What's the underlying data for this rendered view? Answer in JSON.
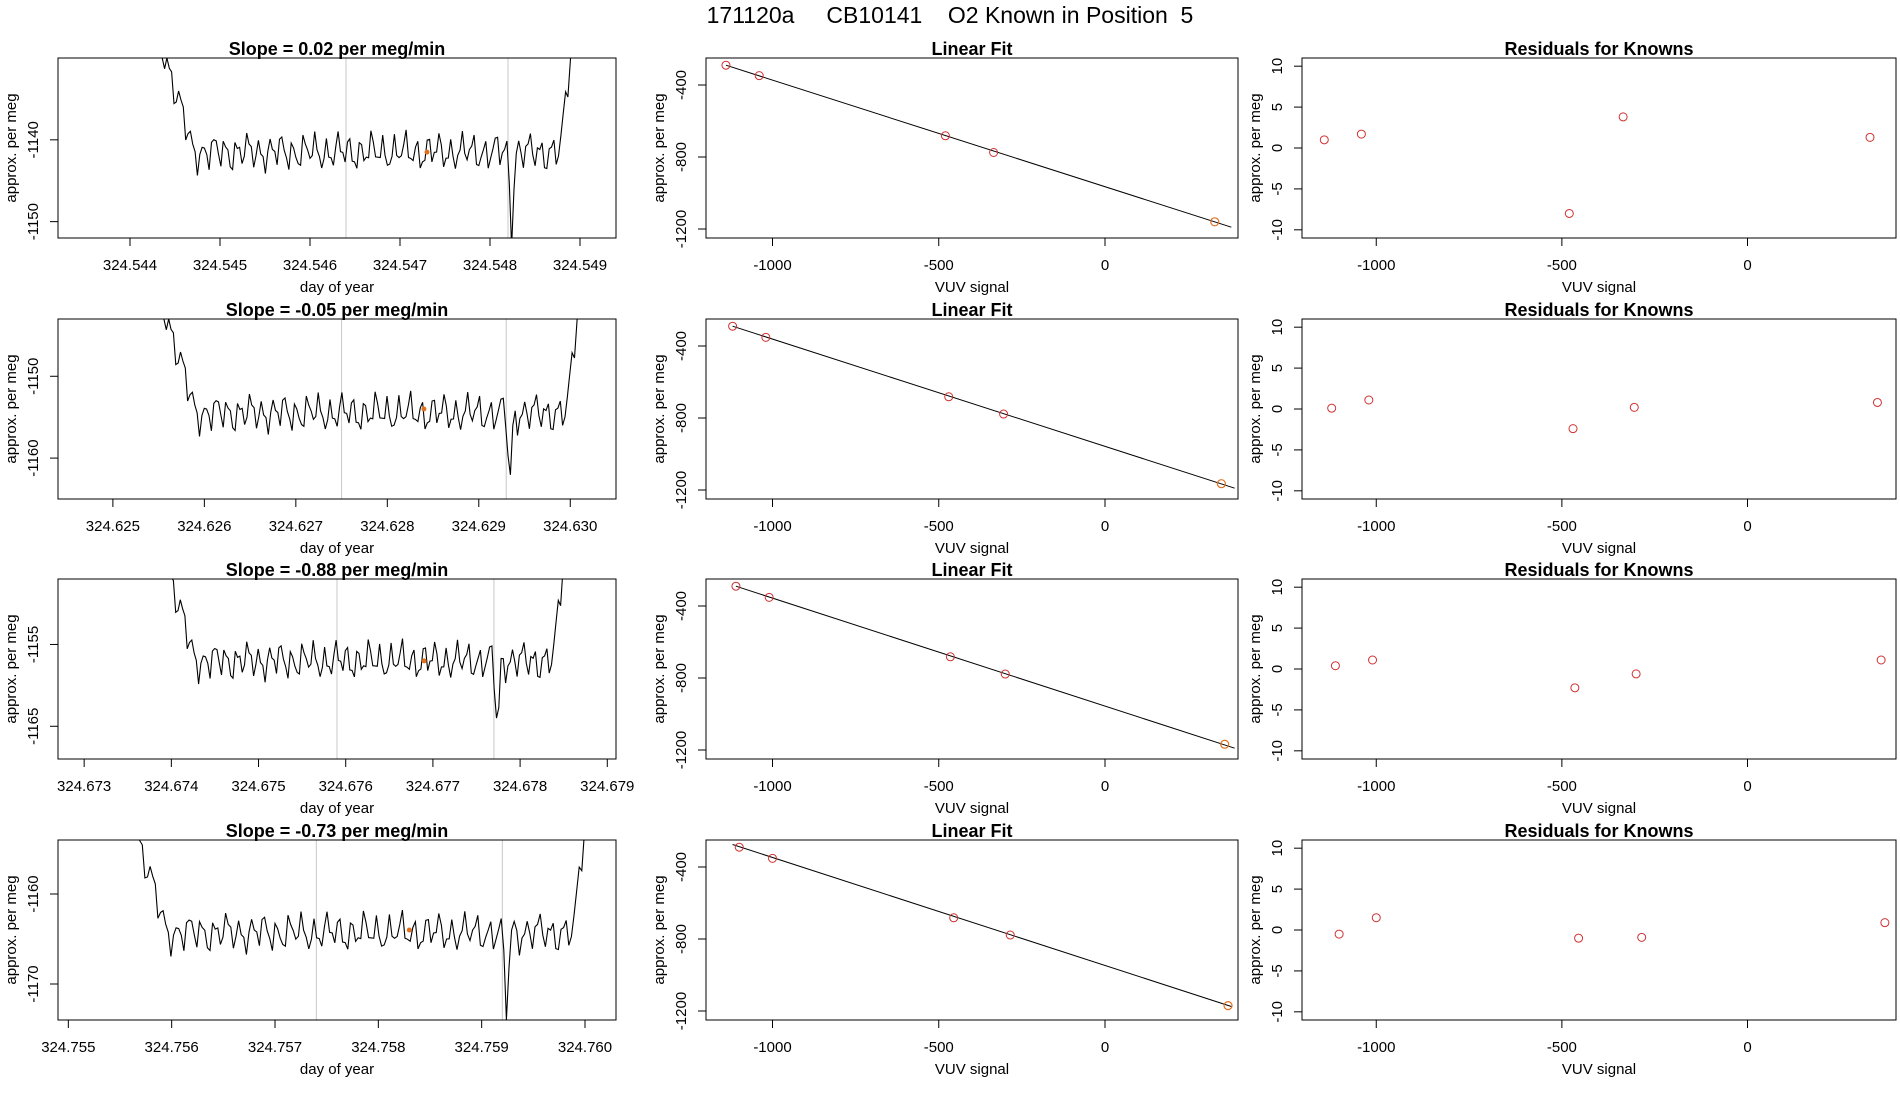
{
  "page_title": "171120a     CB10141    O2 Known in Position  5",
  "colors": {
    "trace": "#000000",
    "marker": "#e07020",
    "points": "#d03030",
    "fit_line": "#000000",
    "boundary": "#c8c8c8",
    "axis": "#000000"
  },
  "chart_data": [
    {
      "type": "line",
      "row": 0,
      "panel": "timeseries",
      "title": "Slope =  0.02  per meg/min",
      "xlabel": "day of year",
      "ylabel": "approx. per meg",
      "xlim": [
        324.5432,
        324.5494
      ],
      "ylim": [
        -1152,
        -1130
      ],
      "xticks": [
        "324.544",
        "324.545",
        "324.546",
        "324.547",
        "324.548",
        "324.549"
      ],
      "yticks": [
        "-1140",
        "-1150"
      ],
      "trace_start": 324.54428,
      "trace_end": 324.54897,
      "trace_base": -1141.5,
      "trace_amp": 2.8,
      "vlines": [
        324.5464,
        324.5482
      ],
      "marker": {
        "x": 324.5473,
        "y": -1141.5
      }
    },
    {
      "type": "scatter",
      "row": 0,
      "panel": "linear_fit",
      "title": "Linear Fit",
      "xlabel": "VUV signal",
      "ylabel": "approx. per meg",
      "xlim": [
        -1200,
        400
      ],
      "ylim": [
        -1250,
        -250
      ],
      "xticks": [
        "-1000",
        "-500",
        "0"
      ],
      "yticks": [
        "-400",
        "-800",
        "-1200"
      ],
      "points": [
        [
          -1140,
          -290
        ],
        [
          -1040,
          -348
        ],
        [
          -480,
          -682
        ],
        [
          -335,
          -775
        ]
      ],
      "known_point": [
        330,
        -1160
      ],
      "fit_line": [
        [
          -1140,
          -290
        ],
        [
          380,
          -1190
        ]
      ]
    },
    {
      "type": "scatter",
      "row": 0,
      "panel": "residuals",
      "title": "Residuals for Knowns",
      "xlabel": "VUV signal",
      "ylabel": "approx. per meg",
      "xlim": [
        -1200,
        400
      ],
      "ylim": [
        -11,
        11
      ],
      "xticks": [
        "-1000",
        "-500",
        "0"
      ],
      "yticks": [
        "10",
        "5",
        "0",
        "-5",
        "-10"
      ],
      "points": [
        [
          -1140,
          1.0
        ],
        [
          -1040,
          1.7
        ],
        [
          -480,
          -8.0
        ],
        [
          -335,
          3.8
        ],
        [
          330,
          1.3
        ]
      ]
    },
    {
      "type": "line",
      "row": 1,
      "panel": "timeseries",
      "title": "Slope =  -0.05  per meg/min",
      "xlabel": "day of year",
      "ylabel": "approx. per meg",
      "xlim": [
        324.6244,
        324.6305
      ],
      "ylim": [
        -1165,
        -1143
      ],
      "xticks": [
        "324.625",
        "324.626",
        "324.627",
        "324.628",
        "324.629",
        "324.630"
      ],
      "yticks": [
        "-1150",
        "-1160"
      ],
      "trace_start": 324.62548,
      "trace_end": 324.63015,
      "trace_base": -1154.5,
      "trace_amp": 2.8,
      "vlines": [
        324.6275,
        324.6293
      ],
      "marker": {
        "x": 324.6284,
        "y": -1154.0
      }
    },
    {
      "type": "scatter",
      "row": 1,
      "panel": "linear_fit",
      "title": "Linear Fit",
      "xlabel": "VUV signal",
      "ylabel": "approx. per meg",
      "xlim": [
        -1200,
        400
      ],
      "ylim": [
        -1250,
        -250
      ],
      "xticks": [
        "-1000",
        "-500",
        "0"
      ],
      "yticks": [
        "-400",
        "-800",
        "-1200"
      ],
      "points": [
        [
          -1120,
          -290
        ],
        [
          -1020,
          -352
        ],
        [
          -470,
          -682
        ],
        [
          -305,
          -778
        ]
      ],
      "known_point": [
        350,
        -1165
      ],
      "fit_line": [
        [
          -1120,
          -290
        ],
        [
          390,
          -1190
        ]
      ]
    },
    {
      "type": "scatter",
      "row": 1,
      "panel": "residuals",
      "title": "Residuals for Knowns",
      "xlabel": "VUV signal",
      "ylabel": "approx. per meg",
      "xlim": [
        -1200,
        400
      ],
      "ylim": [
        -11,
        11
      ],
      "xticks": [
        "-1000",
        "-500",
        "0"
      ],
      "yticks": [
        "10",
        "5",
        "0",
        "-5",
        "-10"
      ],
      "points": [
        [
          -1120,
          0.1
        ],
        [
          -1020,
          1.1
        ],
        [
          -470,
          -2.4
        ],
        [
          -305,
          0.2
        ],
        [
          350,
          0.8
        ]
      ]
    },
    {
      "type": "line",
      "row": 2,
      "panel": "timeseries",
      "title": "Slope =  -0.88  per meg/min",
      "xlabel": "day of year",
      "ylabel": "approx. per meg",
      "xlim": [
        324.6727,
        324.6791
      ],
      "ylim": [
        -1169,
        -1147
      ],
      "xticks": [
        "324.673",
        "324.674",
        "324.675",
        "324.676",
        "324.677",
        "324.678",
        "324.679"
      ],
      "yticks": [
        "-1155",
        "-1165"
      ],
      "trace_start": 324.67384,
      "trace_end": 324.67857,
      "trace_base": -1157.0,
      "trace_amp": 2.8,
      "vlines": [
        324.6759,
        324.6777
      ],
      "marker": {
        "x": 324.6769,
        "y": -1157.0
      }
    },
    {
      "type": "scatter",
      "row": 2,
      "panel": "linear_fit",
      "title": "Linear Fit",
      "xlabel": "VUV signal",
      "ylabel": "approx. per meg",
      "xlim": [
        -1200,
        400
      ],
      "ylim": [
        -1250,
        -250
      ],
      "xticks": [
        "-1000",
        "-500",
        "0"
      ],
      "yticks": [
        "-400",
        "-800",
        "-1200"
      ],
      "points": [
        [
          -1110,
          -290
        ],
        [
          -1010,
          -352
        ],
        [
          -465,
          -682
        ],
        [
          -300,
          -778
        ]
      ],
      "known_point": [
        360,
        -1168
      ],
      "fit_line": [
        [
          -1110,
          -290
        ],
        [
          390,
          -1190
        ]
      ]
    },
    {
      "type": "scatter",
      "row": 2,
      "panel": "residuals",
      "title": "Residuals for Knowns",
      "xlabel": "VUV signal",
      "ylabel": "approx. per meg",
      "xlim": [
        -1200,
        400
      ],
      "ylim": [
        -11,
        11
      ],
      "xticks": [
        "-1000",
        "-500",
        "0"
      ],
      "yticks": [
        "10",
        "5",
        "0",
        "-5",
        "-10"
      ],
      "points": [
        [
          -1110,
          0.4
        ],
        [
          -1010,
          1.1
        ],
        [
          -465,
          -2.3
        ],
        [
          -300,
          -0.6
        ],
        [
          360,
          1.1
        ]
      ]
    },
    {
      "type": "line",
      "row": 3,
      "panel": "timeseries",
      "title": "Slope =  -0.73  per meg/min",
      "xlabel": "day of year",
      "ylabel": "approx. per meg",
      "xlim": [
        324.7549,
        324.7603
      ],
      "ylim": [
        -1174,
        -1154
      ],
      "xticks": [
        "324.755",
        "324.756",
        "324.757",
        "324.758",
        "324.759",
        "324.760"
      ],
      "yticks": [
        "-1160",
        "-1170"
      ],
      "trace_start": 324.75554,
      "trace_end": 324.76007,
      "trace_base": -1164.3,
      "trace_amp": 2.6,
      "vlines": [
        324.7574,
        324.7592
      ],
      "marker": {
        "x": 324.7583,
        "y": -1164.0
      }
    },
    {
      "type": "scatter",
      "row": 3,
      "panel": "linear_fit",
      "title": "Linear Fit",
      "xlabel": "VUV signal",
      "ylabel": "approx. per meg",
      "xlim": [
        -1200,
        400
      ],
      "ylim": [
        -1250,
        -250
      ],
      "xticks": [
        "-1000",
        "-500",
        "0"
      ],
      "yticks": [
        "-400",
        "-800",
        "-1200"
      ],
      "points": [
        [
          -1100,
          -290
        ],
        [
          -1000,
          -352
        ],
        [
          -455,
          -682
        ],
        [
          -285,
          -778
        ]
      ],
      "known_point": [
        370,
        -1170
      ],
      "fit_line": [
        [
          -1120,
          -275
        ],
        [
          380,
          -1175
        ]
      ]
    },
    {
      "type": "scatter",
      "row": 3,
      "panel": "residuals",
      "title": "Residuals for Knowns",
      "xlabel": "VUV signal",
      "ylabel": "approx. per meg",
      "xlim": [
        -1200,
        400
      ],
      "ylim": [
        -11,
        11
      ],
      "xticks": [
        "-1000",
        "-500",
        "0"
      ],
      "yticks": [
        "10",
        "5",
        "0",
        "-5",
        "-10"
      ],
      "points": [
        [
          -1100,
          -0.5
        ],
        [
          -1000,
          1.5
        ],
        [
          -455,
          -1.0
        ],
        [
          -285,
          -0.9
        ],
        [
          370,
          0.9
        ]
      ]
    }
  ]
}
